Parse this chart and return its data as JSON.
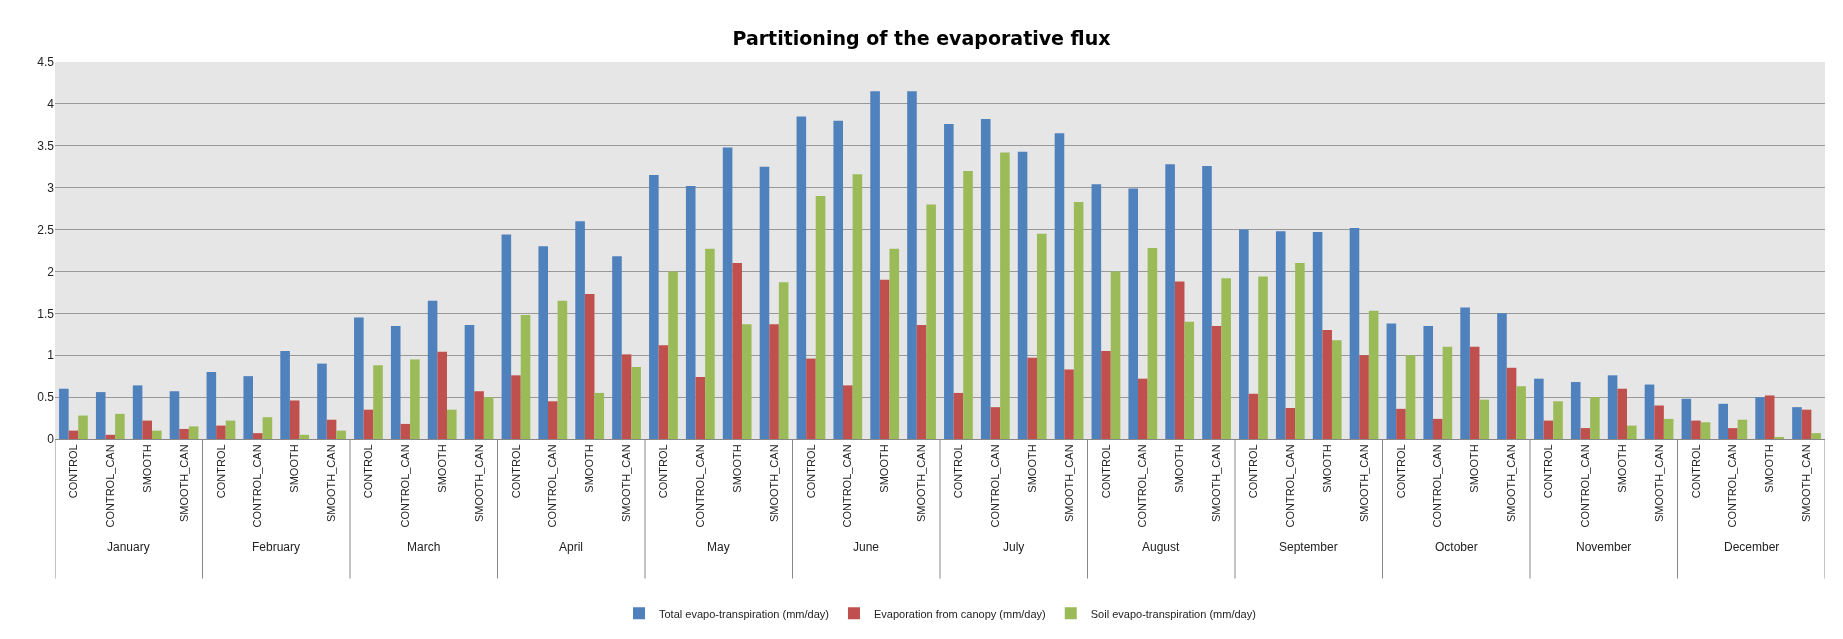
{
  "chart_data": {
    "type": "bar",
    "title": "Partitioning of the evaporative flux",
    "categories": [
      "CONTROL",
      "CONTROL_CAN",
      "SMOOTH",
      "SMOOTH_CAN",
      "CONTROL",
      "CONTROL_CAN",
      "SMOOTH",
      "SMOOTH_CAN",
      "CONTROL",
      "CONTROL_CAN",
      "SMOOTH",
      "SMOOTH_CAN",
      "CONTROL",
      "CONTROL_CAN",
      "SMOOTH",
      "SMOOTH_CAN",
      "CONTROL",
      "CONTROL_CAN",
      "SMOOTH",
      "SMOOTH_CAN",
      "CONTROL",
      "CONTROL_CAN",
      "SMOOTH",
      "SMOOTH_CAN",
      "CONTROL",
      "CONTROL_CAN",
      "SMOOTH",
      "SMOOTH_CAN",
      "CONTROL",
      "CONTROL_CAN",
      "SMOOTH",
      "SMOOTH_CAN",
      "CONTROL",
      "CONTROL_CAN",
      "SMOOTH",
      "SMOOTH_CAN",
      "CONTROL",
      "CONTROL_CAN",
      "SMOOTH",
      "SMOOTH_CAN",
      "CONTROL",
      "CONTROL_CAN",
      "SMOOTH",
      "SMOOTH_CAN",
      "CONTROL",
      "CONTROL_CAN",
      "SMOOTH",
      "SMOOTH_CAN"
    ],
    "annotations": [
      "January",
      "February",
      "March",
      "April",
      "May",
      "June",
      "July",
      "August",
      "September",
      "October",
      "November",
      "December"
    ],
    "series": [
      {
        "name": "Total evapo-transpiration (mm/day)",
        "color": "#4f81bd",
        "values": [
          0.6,
          0.56,
          0.64,
          0.57,
          0.8,
          0.75,
          1.05,
          0.9,
          1.45,
          1.35,
          1.65,
          1.36,
          2.44,
          2.3,
          2.6,
          2.18,
          3.15,
          3.02,
          3.48,
          3.25,
          3.85,
          3.8,
          4.15,
          4.15,
          3.76,
          3.82,
          3.43,
          3.65,
          3.04,
          2.99,
          3.28,
          3.26,
          2.5,
          2.48,
          2.47,
          2.52,
          1.38,
          1.35,
          1.57,
          1.5,
          0.72,
          0.68,
          0.76,
          0.65,
          0.48,
          0.42,
          0.5,
          0.38
        ]
      },
      {
        "name": "Evaporation from canopy (mm/day)",
        "color": "#c0504d",
        "values": [
          0.1,
          0.05,
          0.22,
          0.12,
          0.16,
          0.07,
          0.46,
          0.23,
          0.35,
          0.18,
          1.04,
          0.57,
          0.76,
          0.45,
          1.73,
          1.01,
          1.12,
          0.74,
          2.1,
          1.37,
          0.96,
          0.64,
          1.9,
          1.36,
          0.55,
          0.38,
          0.97,
          0.83,
          1.05,
          0.72,
          1.88,
          1.35,
          0.54,
          0.37,
          1.3,
          1.0,
          0.36,
          0.24,
          1.1,
          0.85,
          0.22,
          0.13,
          0.6,
          0.4,
          0.22,
          0.13,
          0.52,
          0.35
        ]
      },
      {
        "name": "Soil evapo-transpiration (mm/day)",
        "color": "#9bbb59",
        "values": [
          0.28,
          0.3,
          0.1,
          0.15,
          0.22,
          0.26,
          0.05,
          0.1,
          0.88,
          0.95,
          0.35,
          0.5,
          1.48,
          1.65,
          0.55,
          0.86,
          2.0,
          2.27,
          1.37,
          1.87,
          2.9,
          3.16,
          2.27,
          2.8,
          3.2,
          3.42,
          2.45,
          2.83,
          2.0,
          2.28,
          1.4,
          1.92,
          1.94,
          2.1,
          1.18,
          1.53,
          1.0,
          1.1,
          0.47,
          0.63,
          0.45,
          0.5,
          0.16,
          0.24,
          0.2,
          0.23,
          0.02,
          0.07
        ]
      }
    ],
    "ylim": [
      0,
      4.5
    ],
    "yticks": [
      0,
      0.5,
      1,
      1.5,
      2,
      2.5,
      3,
      3.5,
      4,
      4.5
    ],
    "grid": "y",
    "legend": "bottom"
  }
}
